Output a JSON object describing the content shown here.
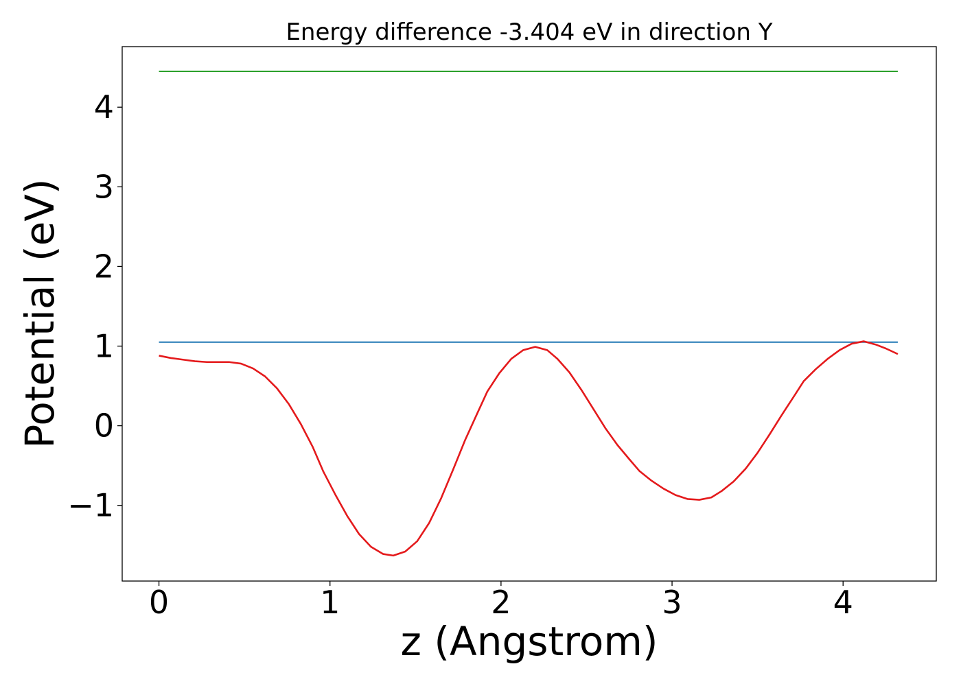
{
  "chart_data": {
    "type": "line",
    "title": "Energy difference -3.404 eV in direction Y",
    "xlabel": "z (Angstrom)",
    "ylabel": "Potential (eV)",
    "xlim": [
      -0.215,
      4.545
    ],
    "ylim": [
      -1.95,
      4.76
    ],
    "xticks": [
      0,
      1,
      2,
      3,
      4
    ],
    "xtick_labels": [
      "0",
      "1",
      "2",
      "3",
      "4"
    ],
    "yticks": [
      -1,
      0,
      1,
      2,
      3,
      4
    ],
    "ytick_labels": [
      "−1",
      "0",
      "1",
      "2",
      "3",
      "4"
    ],
    "grid": false,
    "legend": "none",
    "series": [
      {
        "color": "#2ca02c",
        "x": [
          0,
          4.32
        ],
        "y": [
          4.45,
          4.45
        ]
      },
      {
        "color": "#1f77b4",
        "x": [
          0,
          4.32
        ],
        "y": [
          1.05,
          1.05
        ]
      },
      {
        "color": "#e41a1c",
        "x": [
          0,
          0.07,
          0.14,
          0.21,
          0.28,
          0.35,
          0.41,
          0.48,
          0.55,
          0.62,
          0.69,
          0.76,
          0.83,
          0.9,
          0.96,
          1.03,
          1.1,
          1.17,
          1.24,
          1.31,
          1.37,
          1.44,
          1.51,
          1.58,
          1.65,
          1.72,
          1.79,
          1.86,
          1.92,
          1.99,
          2.06,
          2.13,
          2.2,
          2.27,
          2.33,
          2.4,
          2.47,
          2.54,
          2.61,
          2.68,
          2.75,
          2.81,
          2.88,
          2.95,
          3.02,
          3.09,
          3.16,
          3.23,
          3.29,
          3.36,
          3.43,
          3.5,
          3.57,
          3.64,
          3.71,
          3.77,
          3.84,
          3.91,
          3.98,
          4.05,
          4.12,
          4.19,
          4.25,
          4.32
        ],
        "y": [
          0.88,
          0.85,
          0.83,
          0.81,
          0.8,
          0.8,
          0.8,
          0.78,
          0.72,
          0.62,
          0.47,
          0.27,
          0.02,
          -0.27,
          -0.57,
          -0.86,
          -1.13,
          -1.36,
          -1.52,
          -1.61,
          -1.63,
          -1.58,
          -1.45,
          -1.22,
          -0.91,
          -0.55,
          -0.18,
          0.15,
          0.43,
          0.66,
          0.84,
          0.95,
          0.99,
          0.95,
          0.84,
          0.67,
          0.45,
          0.21,
          -0.03,
          -0.24,
          -0.42,
          -0.57,
          -0.69,
          -0.79,
          -0.87,
          -0.92,
          -0.93,
          -0.9,
          -0.82,
          -0.7,
          -0.54,
          -0.34,
          -0.11,
          0.13,
          0.36,
          0.56,
          0.71,
          0.84,
          0.95,
          1.03,
          1.06,
          1.02,
          0.97,
          0.9
        ]
      }
    ]
  }
}
